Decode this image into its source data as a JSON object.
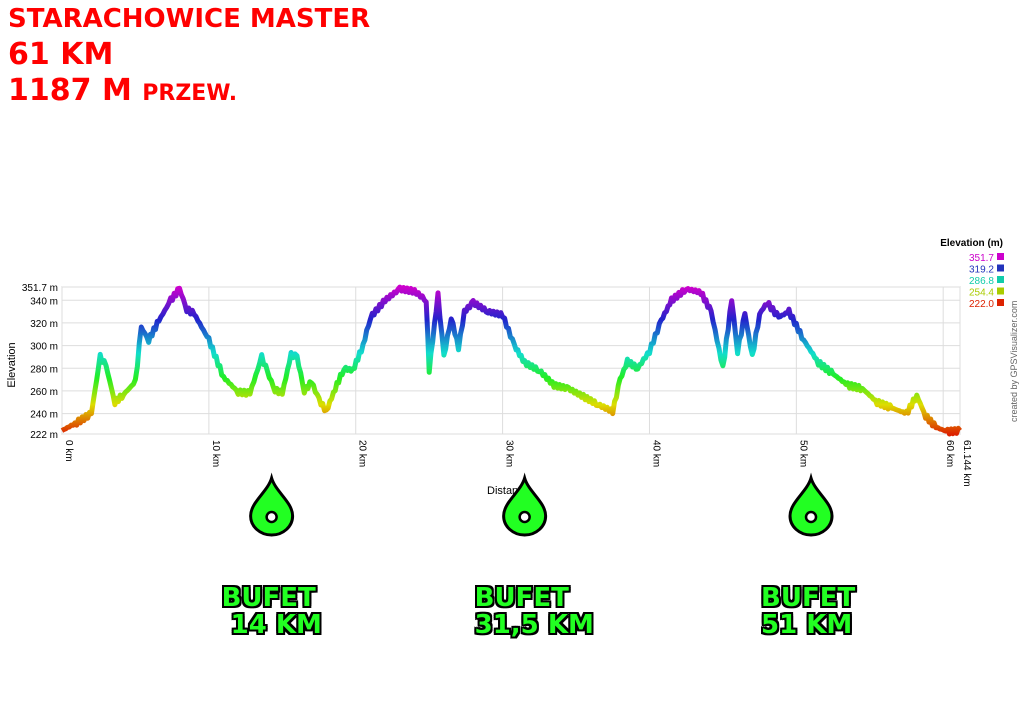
{
  "header": {
    "title_line1": "STARACHOWICE MASTER",
    "title_line2": "61 KM",
    "title_line3_num": "1187 M",
    "title_line3_rest": "PRZEW."
  },
  "chart_data": {
    "type": "area",
    "xlabel": "Distan",
    "ylabel": "Elevation",
    "x_unit": "km",
    "xlim": [
      0,
      61.144
    ],
    "ylim": [
      222,
      351.7
    ],
    "x_ticks": [
      "0 km",
      "10 km",
      "20 km",
      "30 km",
      "40 km",
      "50 km",
      "60 km",
      "61.144 km"
    ],
    "y_ticks": [
      "222 m",
      "240 m",
      "260 m",
      "280 m",
      "300 m",
      "320 m",
      "340 m",
      "351.7 m"
    ],
    "legend_title": "Elevation (m)",
    "legend": [
      {
        "label": "351.7",
        "color": "#cc00cc"
      },
      {
        "label": "319.2",
        "color": "#2233bb"
      },
      {
        "label": "286.8",
        "color": "#11ccaa"
      },
      {
        "label": "254.4",
        "color": "#aacc00"
      },
      {
        "label": "222.0",
        "color": "#dd2200"
      }
    ],
    "credit": "created by GPSVisualizer.com",
    "series": [
      {
        "x": [
          0,
          1,
          2,
          2.6,
          3,
          3.6,
          4.2,
          5,
          5.4,
          5.9,
          6.6,
          7.4,
          8,
          8.5,
          9,
          10,
          11,
          12,
          12.8,
          13.6,
          14,
          14.5,
          15,
          15.6,
          16,
          16.5,
          17,
          17.5,
          18,
          18.6,
          19.2,
          19.8,
          20.5,
          21,
          22,
          23,
          24,
          24.8,
          25,
          25.6,
          26,
          26.5,
          27,
          27.4,
          28,
          29,
          30,
          30.8,
          31.5,
          32.5,
          33.5,
          34.5,
          35.5,
          36.5,
          37.5,
          38,
          38.5,
          39.2,
          40,
          40.8,
          41.5,
          42.5,
          43.5,
          44.2,
          45,
          45.6,
          46,
          46.5,
          47,
          47.5,
          48,
          48.8,
          49.5,
          50.5,
          51.5,
          52.5,
          53.5,
          54.5,
          55.5,
          56.5,
          57.5,
          58.2,
          58.8,
          59.5,
          60.3,
          61.144
        ],
        "y": [
          225,
          232,
          240,
          290,
          282,
          250,
          257,
          268,
          316,
          305,
          322,
          340,
          350,
          332,
          328,
          305,
          272,
          259,
          258,
          290,
          276,
          261,
          258,
          292,
          290,
          260,
          268,
          252,
          242,
          262,
          280,
          278,
          300,
          325,
          340,
          350,
          348,
          340,
          278,
          345,
          290,
          325,
          298,
          330,
          338,
          330,
          327,
          300,
          285,
          278,
          265,
          262,
          255,
          248,
          242,
          270,
          286,
          280,
          295,
          322,
          340,
          350,
          347,
          330,
          280,
          340,
          295,
          328,
          290,
          328,
          338,
          325,
          330,
          305,
          285,
          275,
          265,
          262,
          250,
          245,
          240,
          256,
          238,
          228,
          224,
          225
        ]
      }
    ]
  },
  "markers": [
    {
      "km": 14,
      "line1": "BUFET",
      "line2": " 14 KM"
    },
    {
      "km": 31.5,
      "line1": "BUFET",
      "line2": "31,5 KM"
    },
    {
      "km": 51,
      "line1": "BUFET",
      "line2": "51 KM"
    }
  ],
  "colors": {
    "title": "#ff0000",
    "marker_fill": "#22ff22",
    "marker_stroke": "#000000"
  }
}
